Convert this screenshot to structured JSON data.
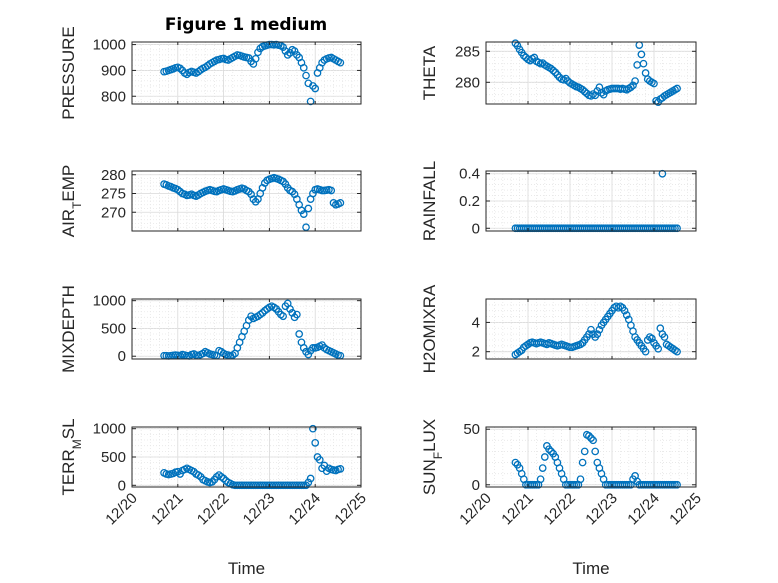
{
  "figure": {
    "title": "Figure 1 medium",
    "marker_color": "#0072BD",
    "axis_color": "#262626",
    "grid_color": "#d9d9d9"
  },
  "chart_data": [
    {
      "type": "scatter",
      "name": "pressure",
      "ylabel": "PRESSURE",
      "xlabel": "",
      "ylim": [
        770,
        1010
      ],
      "yticks": [
        800,
        900,
        1000
      ],
      "xlim": [
        0,
        5
      ],
      "xticks": [],
      "grid": true,
      "x": [
        0.7,
        0.75,
        0.8,
        0.85,
        0.9,
        0.95,
        1.0,
        1.05,
        1.1,
        1.15,
        1.2,
        1.25,
        1.3,
        1.35,
        1.4,
        1.45,
        1.5,
        1.55,
        1.6,
        1.65,
        1.7,
        1.75,
        1.8,
        1.85,
        1.9,
        1.95,
        2.0,
        2.05,
        2.1,
        2.15,
        2.2,
        2.25,
        2.3,
        2.35,
        2.4,
        2.45,
        2.5,
        2.55,
        2.6,
        2.65,
        2.7,
        2.75,
        2.8,
        2.85,
        2.9,
        2.95,
        3.0,
        3.05,
        3.1,
        3.15,
        3.2,
        3.25,
        3.3,
        3.35,
        3.4,
        3.45,
        3.5,
        3.55,
        3.6,
        3.65,
        3.7,
        3.75,
        3.8,
        3.85,
        3.9,
        3.95,
        4.0,
        4.05,
        4.1,
        4.15,
        4.2,
        4.25,
        4.3,
        4.35,
        4.4,
        4.45,
        4.5,
        4.55
      ],
      "y": [
        895,
        897,
        900,
        903,
        906,
        910,
        912,
        908,
        900,
        890,
        885,
        892,
        896,
        893,
        890,
        895,
        902,
        908,
        912,
        918,
        925,
        930,
        935,
        940,
        942,
        945,
        946,
        942,
        940,
        945,
        950,
        955,
        960,
        958,
        955,
        952,
        950,
        948,
        935,
        925,
        945,
        970,
        985,
        992,
        995,
        998,
        1000,
        1000,
        999,
        1000,
        998,
        996,
        990,
        975,
        960,
        968,
        980,
        975,
        960,
        950,
        930,
        910,
        880,
        850,
        780,
        840,
        830,
        890,
        910,
        930,
        940,
        945,
        948,
        950,
        945,
        940,
        935,
        930
      ]
    },
    {
      "type": "scatter",
      "name": "theta",
      "ylabel": "THETA",
      "xlabel": "",
      "ylim": [
        276.5,
        286.5
      ],
      "yticks": [
        280,
        285
      ],
      "xlim": [
        0,
        5
      ],
      "xticks": [],
      "grid": true,
      "x": [
        0.7,
        0.75,
        0.8,
        0.85,
        0.9,
        0.95,
        1.0,
        1.05,
        1.1,
        1.15,
        1.2,
        1.25,
        1.3,
        1.35,
        1.4,
        1.45,
        1.5,
        1.55,
        1.6,
        1.65,
        1.7,
        1.75,
        1.8,
        1.85,
        1.9,
        1.95,
        2.0,
        2.05,
        2.1,
        2.15,
        2.2,
        2.25,
        2.3,
        2.35,
        2.4,
        2.45,
        2.5,
        2.55,
        2.6,
        2.65,
        2.7,
        2.75,
        2.8,
        2.85,
        2.9,
        2.95,
        3.0,
        3.05,
        3.1,
        3.15,
        3.2,
        3.25,
        3.3,
        3.35,
        3.4,
        3.45,
        3.5,
        3.55,
        3.6,
        3.65,
        3.7,
        3.75,
        3.8,
        3.85,
        3.9,
        3.95,
        4.0,
        4.05,
        4.1,
        4.15,
        4.2,
        4.25,
        4.3,
        4.35,
        4.4,
        4.45,
        4.5,
        4.55
      ],
      "y": [
        286.3,
        285.9,
        285.3,
        284.8,
        284.3,
        284.0,
        283.7,
        283.5,
        283.8,
        284.0,
        283.4,
        283.2,
        283.0,
        283.1,
        282.8,
        282.6,
        282.4,
        282.2,
        281.9,
        281.6,
        281.2,
        280.8,
        280.5,
        280.4,
        280.6,
        280.2,
        279.9,
        279.7,
        279.5,
        279.3,
        279.2,
        279.0,
        278.8,
        278.5,
        278.2,
        277.9,
        277.8,
        278.1,
        277.9,
        278.6,
        279.2,
        278.3,
        278.0,
        278.6,
        278.8,
        278.9,
        279.0,
        279.0,
        279.0,
        279.0,
        278.9,
        279.0,
        278.9,
        278.8,
        279.0,
        279.2,
        279.5,
        280.2,
        282.8,
        286.0,
        284.5,
        283.0,
        281.5,
        280.5,
        280.2,
        280.0,
        279.8,
        277.0,
        276.8,
        277.3,
        277.5,
        277.8,
        278.0,
        278.2,
        278.4,
        278.6,
        278.8,
        279.0
      ]
    },
    {
      "type": "scatter",
      "name": "air_temp",
      "ylabel": "AIR_TEMP",
      "xlabel": "",
      "ylim": [
        265,
        281
      ],
      "yticks": [
        270,
        275,
        280
      ],
      "xlim": [
        0,
        5
      ],
      "xticks": [],
      "grid": true,
      "x": [
        0.7,
        0.75,
        0.8,
        0.85,
        0.9,
        0.95,
        1.0,
        1.05,
        1.1,
        1.15,
        1.2,
        1.25,
        1.3,
        1.35,
        1.4,
        1.45,
        1.5,
        1.55,
        1.6,
        1.65,
        1.7,
        1.75,
        1.8,
        1.85,
        1.9,
        1.95,
        2.0,
        2.05,
        2.1,
        2.15,
        2.2,
        2.25,
        2.3,
        2.35,
        2.4,
        2.45,
        2.5,
        2.55,
        2.6,
        2.65,
        2.7,
        2.75,
        2.8,
        2.85,
        2.9,
        2.95,
        3.0,
        3.05,
        3.1,
        3.15,
        3.2,
        3.25,
        3.3,
        3.35,
        3.4,
        3.45,
        3.5,
        3.55,
        3.6,
        3.65,
        3.7,
        3.75,
        3.8,
        3.85,
        3.9,
        3.95,
        4.0,
        4.05,
        4.1,
        4.15,
        4.2,
        4.25,
        4.3,
        4.35,
        4.4,
        4.45,
        4.5,
        4.55
      ],
      "y": [
        277.5,
        277.3,
        277.0,
        276.8,
        276.5,
        276.3,
        276.0,
        275.5,
        275.0,
        274.8,
        274.5,
        274.6,
        274.8,
        274.5,
        274.3,
        274.6,
        275.0,
        275.3,
        275.6,
        275.8,
        276.0,
        275.8,
        275.6,
        275.5,
        275.8,
        276.0,
        276.2,
        276.0,
        275.8,
        275.6,
        275.5,
        275.7,
        276.0,
        276.2,
        276.4,
        276.2,
        275.8,
        275.5,
        274.8,
        273.5,
        272.8,
        273.5,
        275.0,
        276.5,
        277.8,
        278.5,
        278.8,
        279.0,
        279.2,
        279.0,
        278.8,
        278.5,
        278.2,
        277.5,
        276.5,
        275.8,
        275.5,
        274.8,
        273.5,
        272.0,
        270.5,
        269.5,
        266.0,
        271.0,
        273.5,
        275.0,
        276.0,
        276.2,
        276.0,
        275.8,
        275.8,
        275.9,
        276.0,
        275.8,
        272.5,
        272.0,
        272.2,
        272.5
      ]
    },
    {
      "type": "scatter",
      "name": "rainfall",
      "ylabel": "RAINFALL",
      "xlabel": "",
      "ylim": [
        -0.02,
        0.42
      ],
      "yticks": [
        0,
        0.2,
        0.4
      ],
      "xlim": [
        0,
        5
      ],
      "xticks": [],
      "grid": true,
      "x": [
        0.7,
        0.75,
        0.8,
        0.85,
        0.9,
        0.95,
        1.0,
        1.05,
        1.1,
        1.15,
        1.2,
        1.25,
        1.3,
        1.35,
        1.4,
        1.45,
        1.5,
        1.55,
        1.6,
        1.65,
        1.7,
        1.75,
        1.8,
        1.85,
        1.9,
        1.95,
        2.0,
        2.05,
        2.1,
        2.15,
        2.2,
        2.25,
        2.3,
        2.35,
        2.4,
        2.45,
        2.5,
        2.55,
        2.6,
        2.65,
        2.7,
        2.75,
        2.8,
        2.85,
        2.9,
        2.95,
        3.0,
        3.05,
        3.1,
        3.15,
        3.2,
        3.25,
        3.3,
        3.35,
        3.4,
        3.45,
        3.5,
        3.55,
        3.6,
        3.65,
        3.7,
        3.75,
        3.8,
        3.85,
        3.9,
        3.95,
        4.0,
        4.05,
        4.1,
        4.15,
        4.2,
        4.25,
        4.3,
        4.35,
        4.4,
        4.45,
        4.5,
        4.55,
        4.2
      ],
      "y": [
        0,
        0,
        0,
        0,
        0,
        0,
        0,
        0,
        0,
        0,
        0,
        0,
        0,
        0,
        0,
        0,
        0,
        0,
        0,
        0,
        0,
        0,
        0,
        0,
        0,
        0,
        0,
        0,
        0,
        0,
        0,
        0,
        0,
        0,
        0,
        0,
        0,
        0,
        0,
        0,
        0,
        0,
        0,
        0,
        0,
        0,
        0,
        0,
        0,
        0,
        0,
        0,
        0,
        0,
        0,
        0,
        0,
        0,
        0,
        0,
        0,
        0,
        0,
        0,
        0,
        0,
        0,
        0,
        0,
        0,
        0,
        0,
        0,
        0,
        0,
        0,
        0,
        0,
        0.4
      ]
    },
    {
      "type": "scatter",
      "name": "mixdepth",
      "ylabel": "MIXDEPTH",
      "xlabel": "",
      "ylim": [
        -50,
        1030
      ],
      "yticks": [
        0,
        500,
        1000
      ],
      "xlim": [
        0,
        5
      ],
      "xticks": [],
      "grid": true,
      "x": [
        0.7,
        0.75,
        0.8,
        0.85,
        0.9,
        0.95,
        1.0,
        1.05,
        1.1,
        1.15,
        1.2,
        1.25,
        1.3,
        1.35,
        1.4,
        1.45,
        1.5,
        1.55,
        1.6,
        1.65,
        1.7,
        1.75,
        1.8,
        1.85,
        1.9,
        1.95,
        2.0,
        2.05,
        2.1,
        2.15,
        2.2,
        2.25,
        2.3,
        2.35,
        2.4,
        2.45,
        2.5,
        2.55,
        2.6,
        2.65,
        2.7,
        2.75,
        2.8,
        2.85,
        2.9,
        2.95,
        3.0,
        3.05,
        3.1,
        3.15,
        3.2,
        3.25,
        3.3,
        3.35,
        3.4,
        3.45,
        3.5,
        3.55,
        3.6,
        3.65,
        3.7,
        3.75,
        3.8,
        3.85,
        3.9,
        3.95,
        4.0,
        4.05,
        4.1,
        4.15,
        4.2,
        4.25,
        4.3,
        4.35,
        4.4,
        4.45,
        4.5,
        4.55
      ],
      "y": [
        10,
        8,
        5,
        10,
        15,
        20,
        15,
        10,
        30,
        20,
        10,
        5,
        30,
        40,
        20,
        10,
        30,
        50,
        80,
        60,
        40,
        30,
        20,
        10,
        100,
        80,
        50,
        30,
        20,
        10,
        20,
        50,
        150,
        250,
        350,
        450,
        550,
        650,
        720,
        680,
        700,
        720,
        750,
        780,
        820,
        850,
        880,
        900,
        880,
        850,
        800,
        750,
        720,
        900,
        950,
        850,
        780,
        700,
        750,
        400,
        250,
        150,
        80,
        30,
        100,
        150,
        150,
        160,
        180,
        200,
        150,
        120,
        100,
        80,
        60,
        40,
        20,
        10
      ]
    },
    {
      "type": "scatter",
      "name": "h2omixra",
      "ylabel": "H2OMIXRA",
      "xlabel": "",
      "ylim": [
        1.5,
        5.6
      ],
      "yticks": [
        2,
        4
      ],
      "xlim": [
        0,
        5
      ],
      "xticks": [],
      "grid": true,
      "x": [
        0.7,
        0.75,
        0.8,
        0.85,
        0.9,
        0.95,
        1.0,
        1.05,
        1.1,
        1.15,
        1.2,
        1.25,
        1.3,
        1.35,
        1.4,
        1.45,
        1.5,
        1.55,
        1.6,
        1.65,
        1.7,
        1.75,
        1.8,
        1.85,
        1.9,
        1.95,
        2.0,
        2.05,
        2.1,
        2.15,
        2.2,
        2.25,
        2.3,
        2.35,
        2.4,
        2.45,
        2.5,
        2.55,
        2.6,
        2.65,
        2.7,
        2.75,
        2.8,
        2.85,
        2.9,
        2.95,
        3.0,
        3.05,
        3.1,
        3.15,
        3.2,
        3.25,
        3.3,
        3.35,
        3.4,
        3.45,
        3.5,
        3.55,
        3.6,
        3.65,
        3.7,
        3.75,
        3.8,
        3.85,
        3.9,
        3.95,
        4.0,
        4.05,
        4.1,
        4.15,
        4.2,
        4.25,
        4.3,
        4.35,
        4.4,
        4.45,
        4.5,
        4.55
      ],
      "y": [
        1.8,
        1.9,
        2.0,
        2.1,
        2.3,
        2.4,
        2.5,
        2.6,
        2.65,
        2.6,
        2.55,
        2.6,
        2.65,
        2.6,
        2.55,
        2.5,
        2.6,
        2.55,
        2.5,
        2.45,
        2.4,
        2.45,
        2.5,
        2.45,
        2.4,
        2.35,
        2.3,
        2.3,
        2.35,
        2.4,
        2.45,
        2.5,
        2.6,
        2.8,
        3.0,
        3.2,
        3.5,
        3.2,
        3.0,
        3.2,
        3.5,
        3.8,
        4.0,
        4.2,
        4.4,
        4.6,
        4.8,
        5.0,
        5.1,
        5.0,
        5.1,
        5.0,
        4.8,
        4.5,
        4.2,
        3.8,
        3.4,
        3.0,
        2.8,
        2.6,
        2.4,
        2.2,
        2.0,
        2.8,
        3.0,
        2.9,
        2.6,
        2.4,
        2.2,
        3.6,
        3.2,
        3.0,
        2.5,
        2.4,
        2.3,
        2.2,
        2.1,
        2.0
      ]
    },
    {
      "type": "scatter",
      "name": "terr_msl",
      "ylabel": "TERR_MSL",
      "xlabel": "Time",
      "ylim": [
        -30,
        1030
      ],
      "yticks": [
        0,
        500,
        1000
      ],
      "xlim": [
        0,
        5
      ],
      "xticks": [
        "12/20",
        "12/21",
        "12/22",
        "12/23",
        "12/24",
        "12/25"
      ],
      "grid": true,
      "x": [
        0.7,
        0.75,
        0.8,
        0.85,
        0.9,
        0.95,
        1.0,
        1.05,
        1.1,
        1.15,
        1.2,
        1.25,
        1.3,
        1.35,
        1.4,
        1.45,
        1.5,
        1.55,
        1.6,
        1.65,
        1.7,
        1.75,
        1.8,
        1.85,
        1.9,
        1.95,
        2.0,
        2.05,
        2.1,
        2.15,
        2.2,
        2.25,
        2.3,
        2.35,
        2.4,
        2.45,
        2.5,
        2.55,
        2.6,
        2.65,
        2.7,
        2.75,
        2.8,
        2.85,
        2.9,
        2.95,
        3.0,
        3.05,
        3.1,
        3.15,
        3.2,
        3.25,
        3.3,
        3.35,
        3.4,
        3.45,
        3.5,
        3.55,
        3.6,
        3.65,
        3.7,
        3.75,
        3.8,
        3.85,
        3.9,
        3.95,
        4.0,
        4.05,
        4.1,
        4.15,
        4.2,
        4.25,
        4.3,
        4.35,
        4.4,
        4.45,
        4.5,
        4.55
      ],
      "y": [
        220,
        200,
        190,
        200,
        210,
        230,
        240,
        200,
        260,
        280,
        300,
        280,
        260,
        240,
        200,
        180,
        150,
        100,
        80,
        60,
        50,
        60,
        100,
        150,
        180,
        150,
        120,
        80,
        50,
        30,
        10,
        0,
        0,
        0,
        0,
        0,
        0,
        0,
        0,
        0,
        0,
        0,
        0,
        0,
        0,
        0,
        0,
        0,
        0,
        0,
        0,
        0,
        0,
        0,
        0,
        0,
        0,
        0,
        0,
        0,
        0,
        0,
        0,
        50,
        120,
        1000,
        750,
        500,
        450,
        300,
        350,
        250,
        300,
        280,
        270,
        260,
        280,
        290
      ]
    },
    {
      "type": "scatter",
      "name": "sun_flux",
      "ylabel": "SUN_FLUX",
      "xlabel": "Time",
      "ylim": [
        -2,
        52
      ],
      "yticks": [
        0,
        50
      ],
      "xlim": [
        0,
        5
      ],
      "xticks": [
        "12/20",
        "12/21",
        "12/22",
        "12/23",
        "12/24",
        "12/25"
      ],
      "grid": true,
      "x": [
        0.7,
        0.75,
        0.8,
        0.85,
        0.9,
        0.95,
        1.0,
        1.05,
        1.1,
        1.15,
        1.2,
        1.25,
        1.3,
        1.35,
        1.4,
        1.45,
        1.5,
        1.55,
        1.6,
        1.65,
        1.7,
        1.75,
        1.8,
        1.85,
        1.9,
        1.95,
        2.0,
        2.05,
        2.1,
        2.15,
        2.2,
        2.25,
        2.3,
        2.35,
        2.4,
        2.45,
        2.5,
        2.55,
        2.6,
        2.65,
        2.7,
        2.75,
        2.8,
        2.85,
        2.9,
        2.95,
        3.0,
        3.05,
        3.1,
        3.15,
        3.2,
        3.25,
        3.3,
        3.35,
        3.4,
        3.45,
        3.5,
        3.55,
        3.6,
        3.65,
        3.7,
        3.75,
        3.8,
        3.85,
        3.9,
        3.95,
        4.0,
        4.05,
        4.1,
        4.15,
        4.2,
        4.25,
        4.3,
        4.35,
        4.4,
        4.45,
        4.5,
        4.55
      ],
      "y": [
        20,
        18,
        15,
        10,
        5,
        0,
        0,
        0,
        0,
        0,
        0,
        0,
        5,
        15,
        25,
        35,
        32,
        30,
        28,
        25,
        20,
        15,
        10,
        5,
        0,
        0,
        0,
        0,
        0,
        0,
        0,
        5,
        20,
        30,
        45,
        44,
        42,
        40,
        30,
        20,
        15,
        10,
        5,
        0,
        0,
        0,
        0,
        0,
        0,
        0,
        0,
        0,
        0,
        0,
        0,
        0,
        5,
        8,
        3,
        0,
        0,
        0,
        0,
        0,
        0,
        0,
        0,
        0,
        0,
        0,
        0,
        0,
        0,
        0,
        0,
        0,
        0,
        0
      ]
    }
  ]
}
